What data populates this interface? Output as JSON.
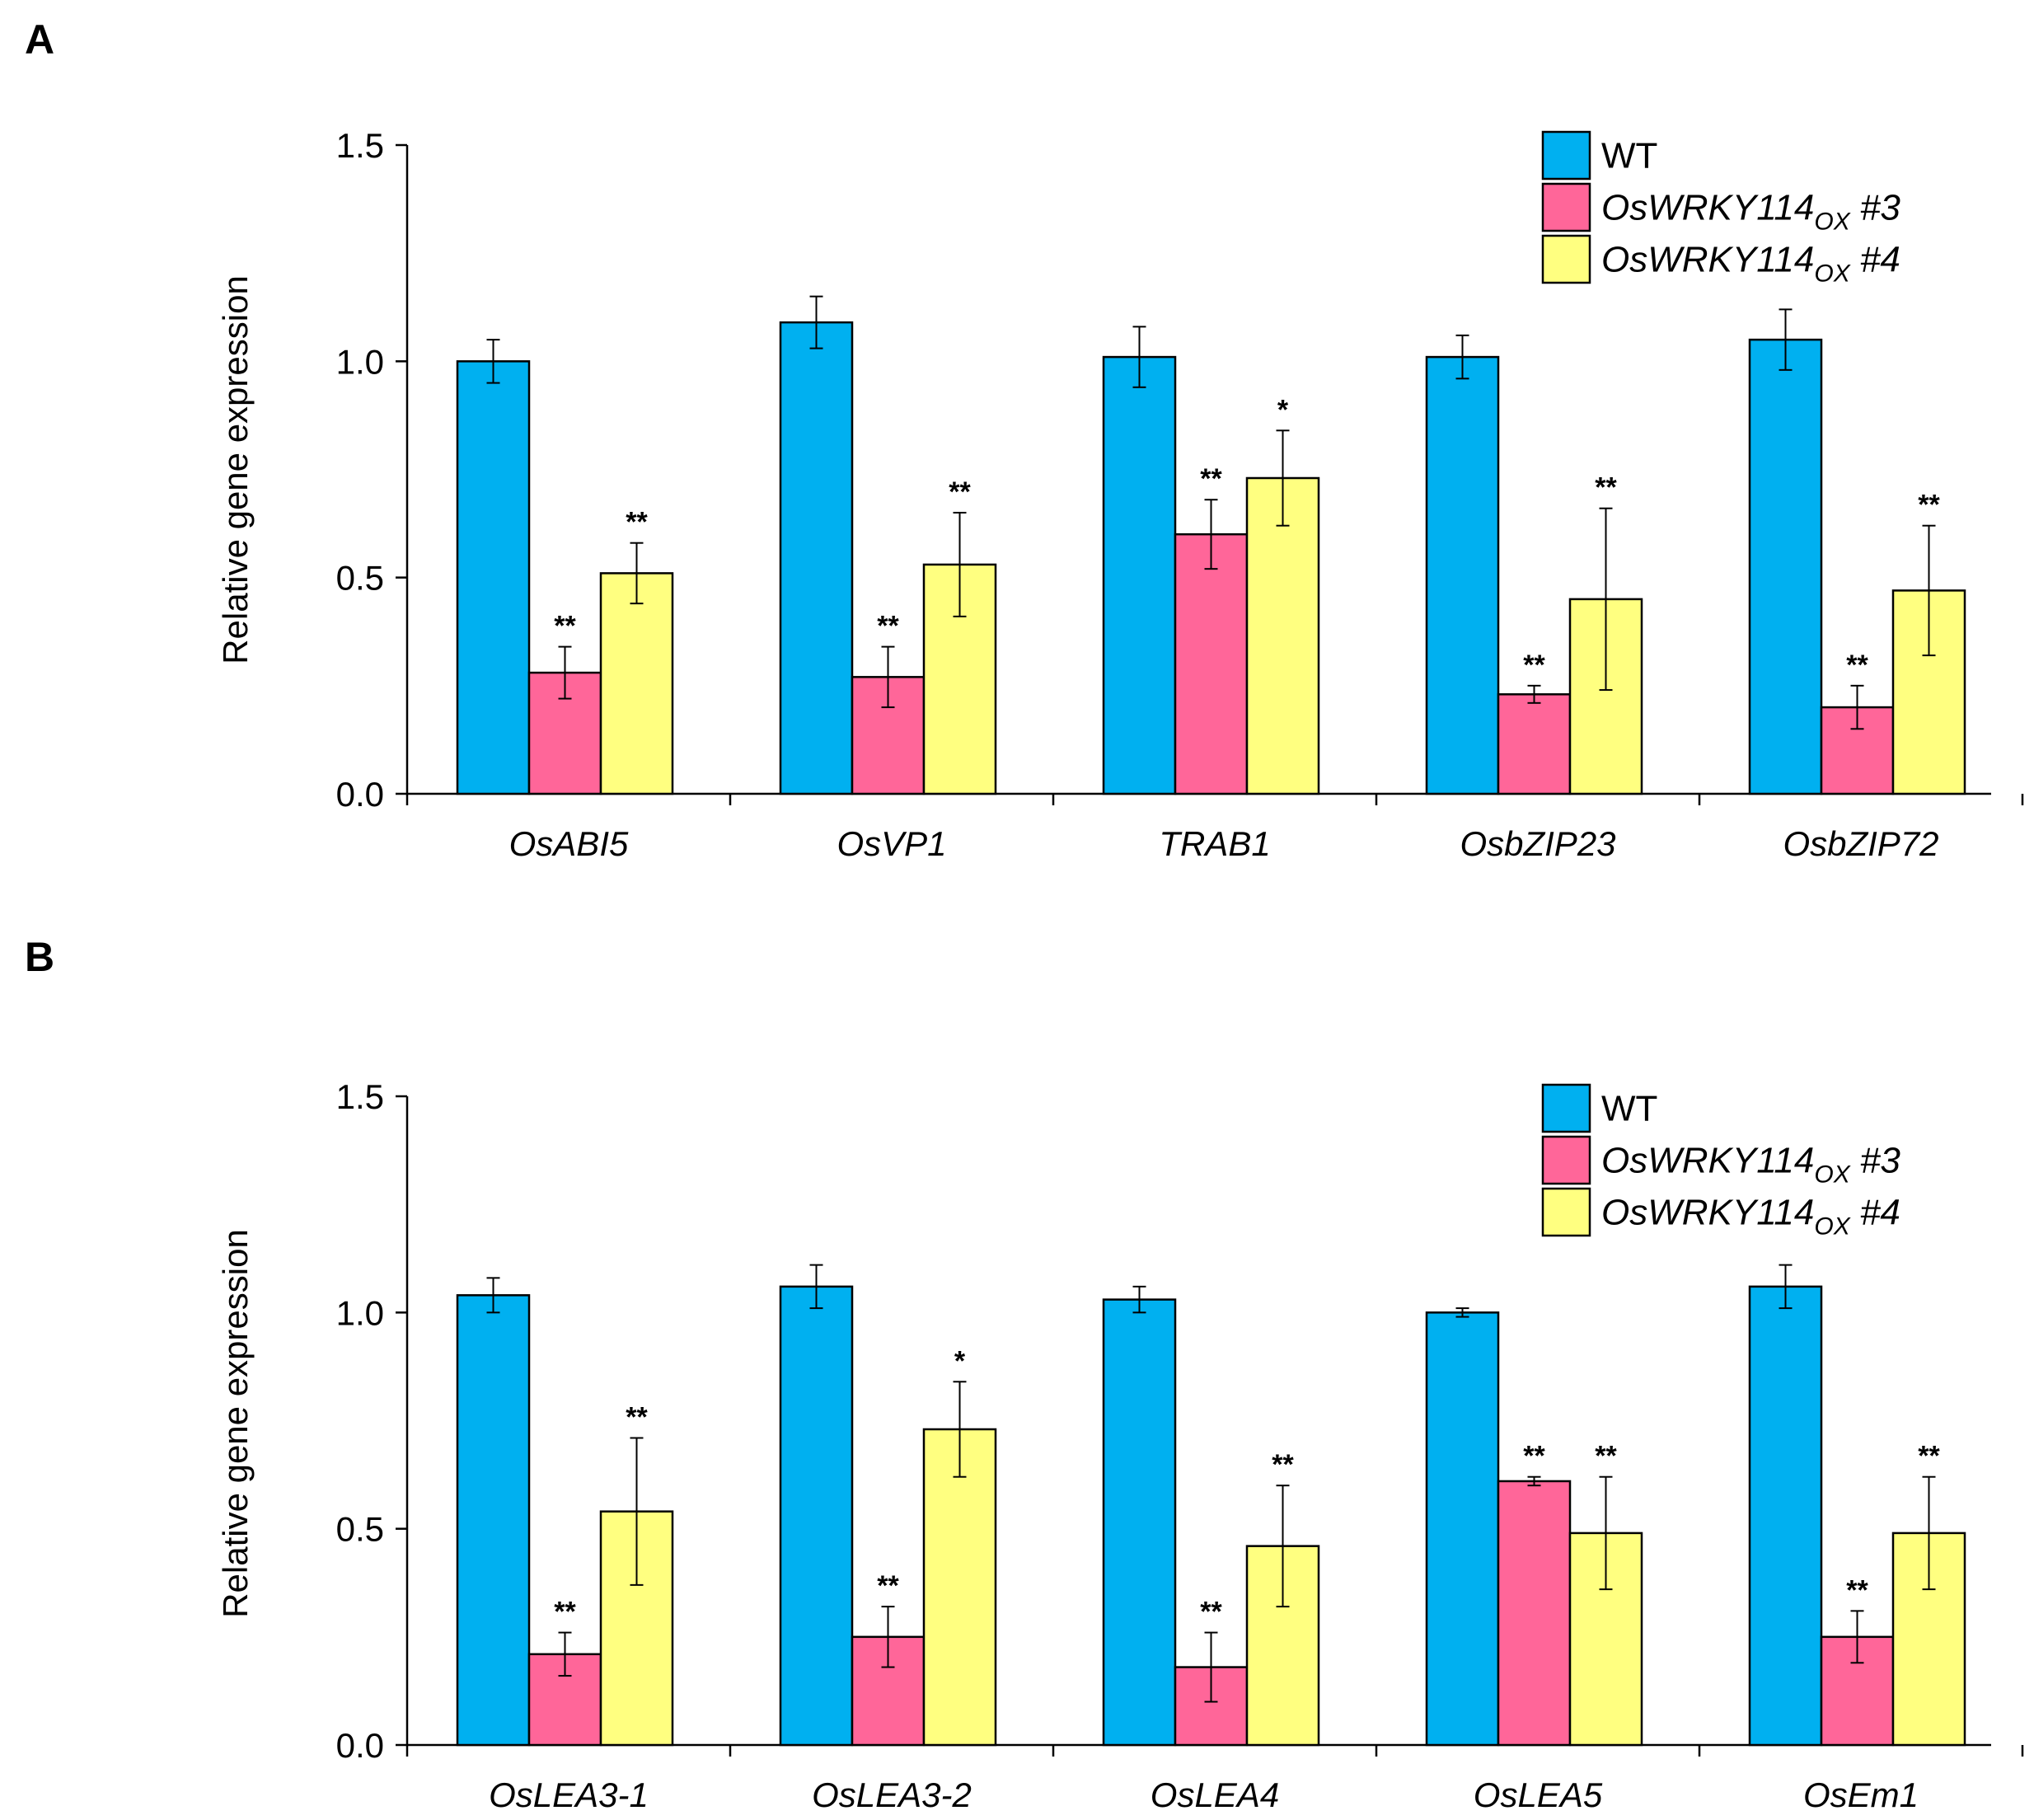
{
  "chart_data": [
    {
      "panel": "A",
      "type": "bar",
      "ylabel": "Relative gene expression",
      "xlabel": "",
      "ylim": [
        0,
        1.5
      ],
      "yticks": [
        "0.0",
        "0.5",
        "1.0",
        "1.5"
      ],
      "ytick_values": [
        0,
        0.5,
        1.0,
        1.5
      ],
      "categories": [
        "OsABI5",
        "OsVP1",
        "TRAB1",
        "OsbZIP23",
        "OsbZIP72"
      ],
      "series": [
        {
          "name": "WT",
          "color": "#00b0f0",
          "values": [
            1.0,
            1.09,
            1.01,
            1.01,
            1.05
          ],
          "errors": [
            0.05,
            0.06,
            0.07,
            0.05,
            0.07
          ],
          "sig": [
            "",
            "",
            "",
            "",
            ""
          ]
        },
        {
          "name": "OsWRKY114OX #3",
          "color": "#ff6699",
          "values": [
            0.28,
            0.27,
            0.6,
            0.23,
            0.2
          ],
          "errors": [
            0.06,
            0.07,
            0.08,
            0.02,
            0.05
          ],
          "sig": [
            "**",
            "**",
            "**",
            "**",
            "**"
          ]
        },
        {
          "name": "OsWRKY114OX #4",
          "color": "#ffff80",
          "values": [
            0.51,
            0.53,
            0.73,
            0.45,
            0.47
          ],
          "errors": [
            0.07,
            0.12,
            0.11,
            0.21,
            0.15
          ],
          "sig": [
            "**",
            "**",
            "*",
            "**",
            "**"
          ]
        }
      ],
      "legend_position": "top-right"
    },
    {
      "panel": "B",
      "type": "bar",
      "ylabel": "Relative gene expression",
      "xlabel": "",
      "ylim": [
        0,
        1.5
      ],
      "yticks": [
        "0.0",
        "0.5",
        "1.0",
        "1.5"
      ],
      "ytick_values": [
        0,
        0.5,
        1.0,
        1.5
      ],
      "categories": [
        "OsLEA3-1",
        "OsLEA3-2",
        "OsLEA4",
        "OsLEA5",
        "OsEm1"
      ],
      "series": [
        {
          "name": "WT",
          "color": "#00b0f0",
          "values": [
            1.04,
            1.06,
            1.03,
            1.0,
            1.06
          ],
          "errors": [
            0.04,
            0.05,
            0.03,
            0.01,
            0.05
          ],
          "sig": [
            "",
            "",
            "",
            "",
            ""
          ]
        },
        {
          "name": "OsWRKY114OX #3",
          "color": "#ff6699",
          "values": [
            0.21,
            0.25,
            0.18,
            0.61,
            0.25
          ],
          "errors": [
            0.05,
            0.07,
            0.08,
            0.01,
            0.06
          ],
          "sig": [
            "**",
            "**",
            "**",
            "**",
            "**"
          ]
        },
        {
          "name": "OsWRKY114OX #4",
          "color": "#ffff80",
          "values": [
            0.54,
            0.73,
            0.46,
            0.49,
            0.49
          ],
          "errors": [
            0.17,
            0.11,
            0.14,
            0.13,
            0.13
          ],
          "sig": [
            "**",
            "*",
            "**",
            "**",
            "**"
          ]
        }
      ],
      "legend_position": "top-right"
    }
  ],
  "legend": {
    "wt": "WT",
    "ox_base": "OsWRKY114",
    "ox_sub": "OX",
    "ox3_suffix": " #3",
    "ox4_suffix": " #4"
  },
  "panel_letters": [
    "A",
    "B"
  ]
}
